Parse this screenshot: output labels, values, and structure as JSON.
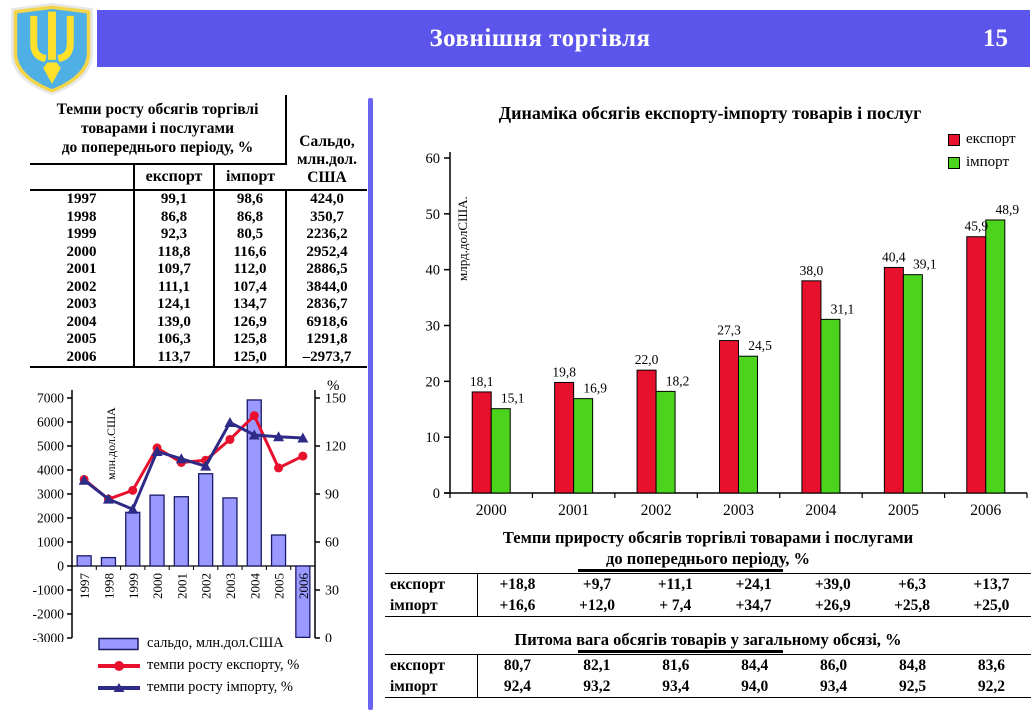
{
  "header": {
    "title": "Зовнішня торгівля",
    "page_number": "15",
    "emblem": "coat-of-arms-of-ukraine"
  },
  "colors": {
    "header_bar": "#5b55ec",
    "divider": "#6a63f2",
    "export_red": "#e8112d",
    "import_green": "#4cd41c",
    "saldo_fill": "#9999ff",
    "saldo_border": "#1a1a66",
    "export_line": "#e8112d",
    "import_line": "#2e2b87",
    "shield_blue": "#4fb0e6",
    "trident_yellow": "#ffe12b"
  },
  "left_table": {
    "title_lines": [
      "Темпи росту обсягів торгівлі",
      "товарами і послугами",
      "до попереднього періоду, %"
    ],
    "saldo_header_lines": [
      "Сальдо,",
      "млн.дол.",
      "США"
    ],
    "col_headers": [
      "експорт",
      "імпорт"
    ],
    "rows": [
      {
        "year": "1997",
        "export": "99,1",
        "import": "98,6",
        "saldo": "424,0"
      },
      {
        "year": "1998",
        "export": "86,8",
        "import": "86,8",
        "saldo": "350,7"
      },
      {
        "year": "1999",
        "export": "92,3",
        "import": "80,5",
        "saldo": "2236,2"
      },
      {
        "year": "2000",
        "export": "118,8",
        "import": "116,6",
        "saldo": "2952,4"
      },
      {
        "year": "2001",
        "export": "109,7",
        "import": "112,0",
        "saldo": "2886,5"
      },
      {
        "year": "2002",
        "export": "111,1",
        "import": "107,4",
        "saldo": "3844,0"
      },
      {
        "year": "2003",
        "export": "124,1",
        "import": "134,7",
        "saldo": "2836,7"
      },
      {
        "year": "2004",
        "export": "139,0",
        "import": "126,9",
        "saldo": "6918,6"
      },
      {
        "year": "2005",
        "export": "106,3",
        "import": "125,8",
        "saldo": "1291,8"
      },
      {
        "year": "2006",
        "export": "113,7",
        "import": "125,0",
        "saldo": "–2973,7"
      }
    ]
  },
  "chart_data": [
    {
      "type": "combo-bar-line",
      "categories": [
        "1997",
        "1998",
        "1999",
        "2000",
        "2001",
        "2002",
        "2003",
        "2004",
        "2005",
        "2006"
      ],
      "series": [
        {
          "name": "сальдо, млн.дол.США",
          "type": "bar",
          "axis": "left",
          "values": [
            424.0,
            350.7,
            2236.2,
            2952.4,
            2886.5,
            3844.0,
            2836.7,
            6918.6,
            1291.8,
            -2973.7
          ]
        },
        {
          "name": "темпи росту експорту, %",
          "type": "line",
          "marker": "circle",
          "axis": "right",
          "values": [
            99.1,
            86.8,
            92.3,
            118.8,
            109.7,
            111.1,
            124.1,
            139.0,
            106.3,
            113.7
          ]
        },
        {
          "name": "темпи росту імпорту, %",
          "type": "line",
          "marker": "triangle",
          "axis": "right",
          "values": [
            98.6,
            86.8,
            80.5,
            116.6,
            112.0,
            107.4,
            134.7,
            126.9,
            125.8,
            125.0
          ]
        }
      ],
      "left_axis": {
        "label": "млн.дол.США",
        "min": -3000,
        "max": 7000,
        "tick_step": 1000
      },
      "right_axis": {
        "label": "%",
        "min": 0,
        "max": 150,
        "tick_step": 30
      },
      "grid": false,
      "legend_position": "bottom-left"
    },
    {
      "type": "bar",
      "title": "Динаміка обсягів експорту-імпорту товарів і послуг",
      "ylabel": "млрд.долСША.",
      "categories": [
        "2000",
        "2001",
        "2002",
        "2003",
        "2004",
        "2005",
        "2006"
      ],
      "series": [
        {
          "name": "експорт",
          "values": [
            18.1,
            19.8,
            22.0,
            27.3,
            38.0,
            40.4,
            45.9
          ]
        },
        {
          "name": "імпорт",
          "values": [
            15.1,
            16.9,
            18.2,
            24.5,
            31.1,
            39.1,
            48.9
          ]
        }
      ],
      "data_labels": [
        [
          "18,1",
          "19,8",
          "22,0",
          "27,3",
          "38,0",
          "40,4",
          "45,9"
        ],
        [
          "15,1",
          "16,9",
          "18,2",
          "24,5",
          "31,1",
          "39,1",
          "48,9"
        ]
      ],
      "ylim": [
        0,
        60
      ],
      "tick_step": 10,
      "grid": false,
      "legend_position": "top-right"
    }
  ],
  "growth_table": {
    "title_line1": "Темпи  приросту обсягів торгівлі товарами і послугами",
    "title_line2": "до попереднього періоду, %",
    "rows": [
      {
        "label": "експорт",
        "values": [
          "+18,8",
          "+9,7",
          "+11,1",
          "+24,1",
          "+39,0",
          "+6,3",
          "+13,7"
        ]
      },
      {
        "label": "імпорт",
        "values": [
          "+16,6",
          "+12,0",
          "+ 7,4",
          "+34,7",
          "+26,9",
          "+25,8",
          "+25,0"
        ]
      }
    ]
  },
  "share_table": {
    "title": "Питома вага обсягів товарів у загальному обсязі, %",
    "rows": [
      {
        "label": "експорт",
        "values": [
          "80,7",
          "82,1",
          "81,6",
          "84,4",
          "86,0",
          "84,8",
          "83,6"
        ]
      },
      {
        "label": "імпорт",
        "values": [
          "92,4",
          "93,2",
          "93,4",
          "94,0",
          "93,4",
          "92,5",
          "92,2"
        ]
      }
    ]
  }
}
